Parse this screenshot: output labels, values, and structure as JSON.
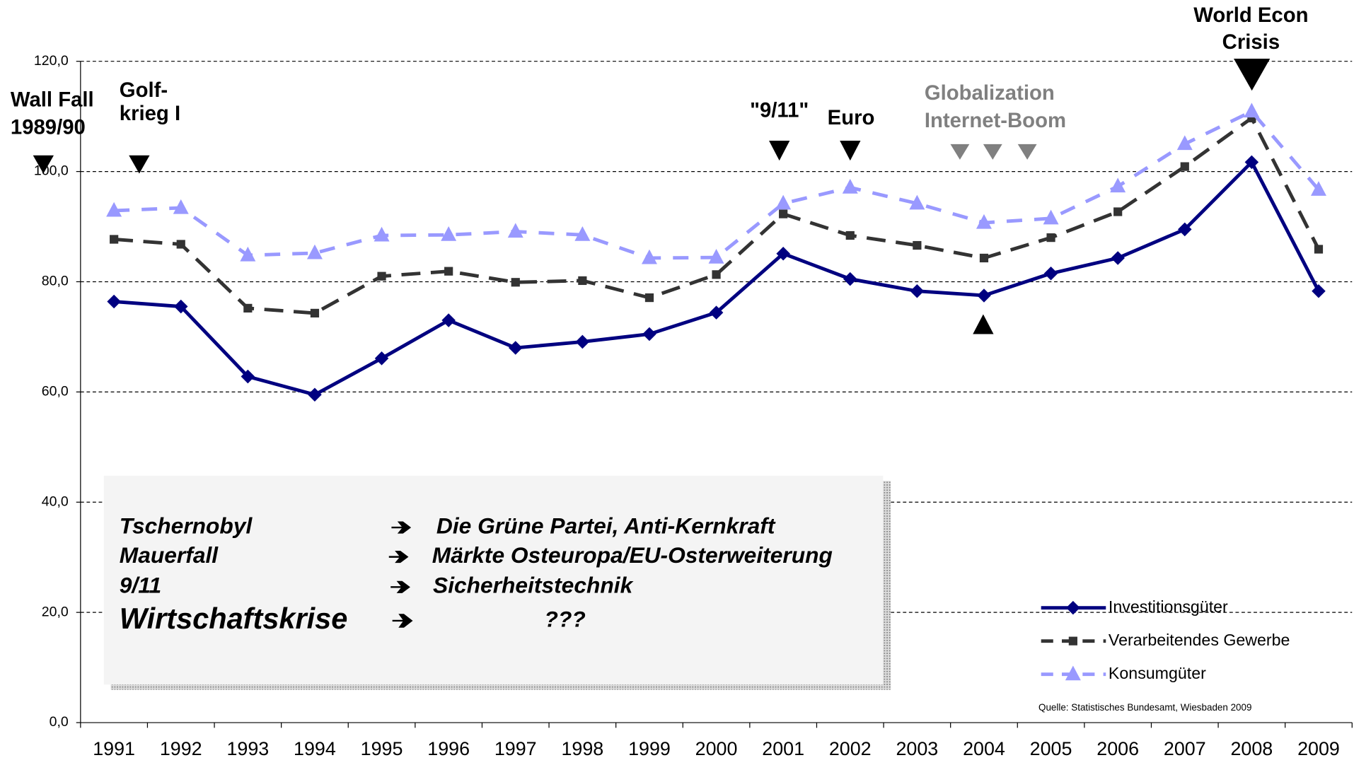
{
  "chart_data": {
    "type": "line",
    "categories": [
      "1991",
      "1992",
      "1993",
      "1994",
      "1995",
      "1996",
      "1997",
      "1998",
      "1999",
      "2000",
      "2001",
      "2002",
      "2003",
      "2004",
      "2005",
      "2006",
      "2007",
      "2008",
      "2009"
    ],
    "series": [
      {
        "name": "Investitionsgüter",
        "color": "#000080",
        "values": [
          76.4,
          75.5,
          62.8,
          59.5,
          66.1,
          73.0,
          68.0,
          69.1,
          70.5,
          74.4,
          85.1,
          80.5,
          78.3,
          77.5,
          81.5,
          84.3,
          89.5,
          101.7,
          78.3
        ]
      },
      {
        "name": "Verarbeitendes Gewerbe",
        "color": "#333333",
        "values": [
          87.7,
          86.8,
          75.2,
          74.3,
          81.0,
          81.9,
          79.9,
          80.2,
          77.1,
          81.3,
          92.3,
          88.4,
          86.6,
          84.3,
          88.0,
          92.7,
          100.9,
          109.7,
          85.9
        ]
      },
      {
        "name": "Konsumgüter",
        "color": "#9999ff",
        "values": [
          92.9,
          93.4,
          84.8,
          85.2,
          88.4,
          88.5,
          89.1,
          88.5,
          84.3,
          84.4,
          94.2,
          97.1,
          94.2,
          90.7,
          91.5,
          97.3,
          105.0,
          110.9,
          96.7
        ]
      }
    ],
    "ylim": [
      0,
      120
    ],
    "yticks": [
      {
        "value": 0,
        "label": "0,0"
      },
      {
        "value": 20,
        "label": "20,0"
      },
      {
        "value": 40,
        "label": "40,0"
      },
      {
        "value": 60,
        "label": "60,0"
      },
      {
        "value": 80,
        "label": "80,0"
      },
      {
        "value": 100,
        "label": "100,0"
      },
      {
        "value": 120,
        "label": "120,0"
      }
    ],
    "grid": true,
    "legend": "lower right",
    "annotations": [
      "World Econ",
      "Crisis",
      "Wall Fall",
      "1989/90",
      "Golf-",
      "krieg I",
      "\"9/11\"",
      "Euro",
      "Globalization",
      "Internet-Boom"
    ],
    "box": [
      {
        "left": "Tschernobyl",
        "right": "Die Grüne Partei, Anti-Kernkraft"
      },
      {
        "left": "Mauerfall",
        "right": "Märkte Osteuropa/EU-Osterweiterung"
      },
      {
        "left": "9/11",
        "right": "Sicherheitstechnik"
      },
      {
        "left": "Wirtschaftskrise",
        "right": "???"
      }
    ],
    "source": "Quelle: Statistisches Bundesamt, Wiesbaden 2009"
  }
}
